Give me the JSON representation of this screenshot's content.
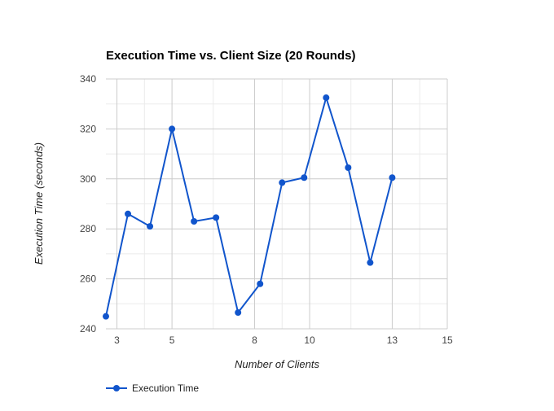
{
  "colors": {
    "series": "#1155cc",
    "major_grid": "#cccccc",
    "minor_grid": "#ebebeb",
    "axis_text": "#444444"
  },
  "chart_data": {
    "type": "line",
    "title": "Execution Time vs. Client Size (20 Rounds)",
    "xlabel": "Number of Clients",
    "ylabel": "Execution Time (seconds)",
    "xlim": [
      2.6,
      15
    ],
    "ylim": [
      240,
      340
    ],
    "x_ticks": [
      3,
      5,
      8,
      10,
      13,
      15
    ],
    "x_tick_labels": [
      "3",
      "5",
      "8",
      "10",
      "13",
      "15"
    ],
    "y_ticks": [
      240,
      260,
      280,
      300,
      320,
      340
    ],
    "y_tick_labels": [
      "240",
      "260",
      "280",
      "300",
      "320",
      "340"
    ],
    "grid": true,
    "legend_position": "bottom-left",
    "series": [
      {
        "name": "Execution Time",
        "x": [
          2.6,
          3.4,
          4.2,
          5.0,
          5.8,
          6.6,
          7.4,
          8.2,
          9.0,
          9.8,
          10.6,
          11.4,
          12.2,
          13.0,
          13.8,
          15.0
        ],
        "values": [
          245,
          286,
          281,
          320,
          283,
          284.5,
          246.5,
          258,
          298.5,
          300.5,
          332.5,
          304.5,
          266.5,
          300.5,
          null,
          null
        ]
      }
    ]
  }
}
